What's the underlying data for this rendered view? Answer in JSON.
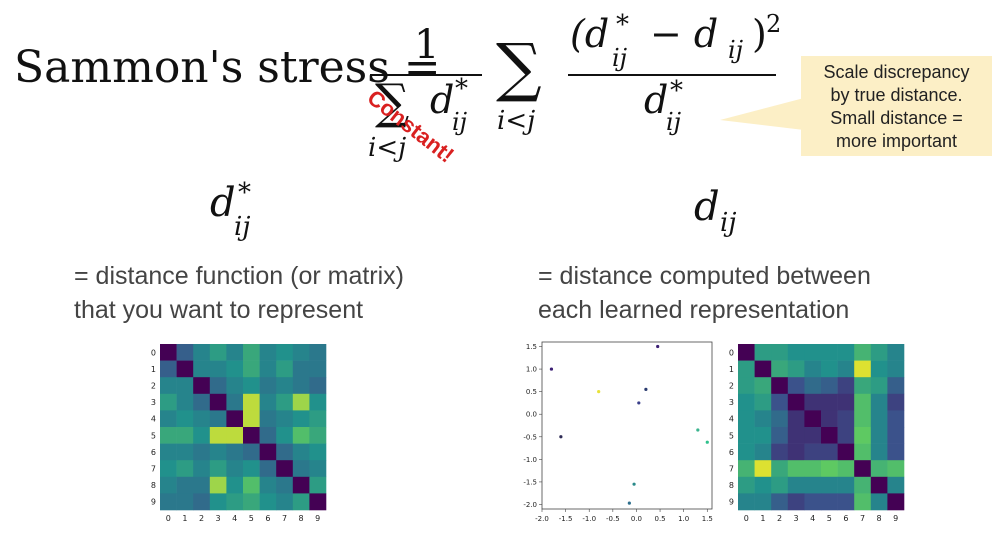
{
  "formula": {
    "lhs": "Sammon's stress =",
    "frac_num": "1",
    "outer_sigma": "∑",
    "sum_sub": "i<j",
    "d_star": "d",
    "star": "*",
    "sub_ij": "ij",
    "term_num_open": "(d",
    "term_minus": "− d",
    "term_close": ")",
    "power": "2",
    "constant_note": "Constant!"
  },
  "callout": {
    "line1": "Scale discrepancy",
    "line2": "by true distance.",
    "line3": "Small distance =",
    "line4": "more important"
  },
  "left": {
    "symbol_base": "d",
    "symbol_sup": "*",
    "symbol_sub": "ij",
    "line1": "= distance function (or matrix)",
    "line2": "that you want to represent",
    "heatmap_ticks": [
      "0",
      "1",
      "2",
      "3",
      "4",
      "5",
      "6",
      "7",
      "8",
      "9"
    ]
  },
  "right": {
    "symbol_base": "d",
    "symbol_sub": "ij",
    "line1": "= distance computed between",
    "line2": "each learned representation",
    "heatmap_ticks": [
      "0",
      "1",
      "2",
      "3",
      "4",
      "5",
      "6",
      "7",
      "8",
      "9"
    ]
  },
  "colors": {
    "callout_bg": "#fcefc6",
    "constant": "#d92020",
    "text": "#444444"
  },
  "chart_data": [
    {
      "type": "heatmap",
      "xticks": [
        "0",
        "1",
        "2",
        "3",
        "4",
        "5",
        "6",
        "7",
        "8",
        "9"
      ],
      "yticks": [
        "0",
        "1",
        "2",
        "3",
        "4",
        "5",
        "6",
        "7",
        "8",
        "9"
      ],
      "values": [
        [
          0.0,
          0.3,
          0.45,
          0.55,
          0.45,
          0.6,
          0.45,
          0.5,
          0.45,
          0.4
        ],
        [
          0.3,
          0.0,
          0.45,
          0.45,
          0.5,
          0.6,
          0.45,
          0.55,
          0.4,
          0.4
        ],
        [
          0.45,
          0.45,
          0.0,
          0.35,
          0.45,
          0.5,
          0.4,
          0.45,
          0.4,
          0.35
        ],
        [
          0.55,
          0.45,
          0.35,
          0.0,
          0.4,
          0.9,
          0.45,
          0.55,
          0.85,
          0.5
        ],
        [
          0.45,
          0.5,
          0.45,
          0.4,
          0.0,
          0.9,
          0.4,
          0.45,
          0.5,
          0.55
        ],
        [
          0.6,
          0.6,
          0.5,
          0.9,
          0.9,
          0.0,
          0.35,
          0.5,
          0.7,
          0.6
        ],
        [
          0.45,
          0.45,
          0.4,
          0.45,
          0.4,
          0.35,
          0.0,
          0.35,
          0.45,
          0.5
        ],
        [
          0.5,
          0.55,
          0.45,
          0.55,
          0.45,
          0.5,
          0.35,
          0.0,
          0.4,
          0.45
        ],
        [
          0.45,
          0.4,
          0.4,
          0.85,
          0.5,
          0.7,
          0.45,
          0.4,
          0.0,
          0.55
        ],
        [
          0.4,
          0.4,
          0.35,
          0.5,
          0.55,
          0.6,
          0.5,
          0.45,
          0.55,
          0.0
        ]
      ]
    },
    {
      "type": "scatter",
      "xlim": [
        -2.0,
        1.6
      ],
      "ylim": [
        -2.1,
        1.6
      ],
      "xticks": [
        "-2.0",
        "-1.5",
        "-1.0",
        "-0.5",
        "0.0",
        "0.5",
        "1.0",
        "1.5"
      ],
      "yticks": [
        "1.5",
        "1.0",
        "0.5",
        "0.0",
        "-0.5",
        "-1.0",
        "-1.5",
        "-2.0"
      ],
      "x": [
        0.45,
        -1.8,
        -0.8,
        0.2,
        0.05,
        -1.6,
        1.3,
        1.5,
        -0.05,
        -0.15
      ],
      "y": [
        1.5,
        1.0,
        0.5,
        0.55,
        0.25,
        -0.5,
        -0.35,
        -0.62,
        -1.55,
        -1.97
      ],
      "colors": [
        "#3b1f74",
        "#3b1f74",
        "#e8e23a",
        "#2a3b6f",
        "#3a3f8a",
        "#2e2b55",
        "#3cb48f",
        "#2fc18c",
        "#2a8a8a",
        "#2f6f8d"
      ]
    },
    {
      "type": "heatmap",
      "xticks": [
        "0",
        "1",
        "2",
        "3",
        "4",
        "5",
        "6",
        "7",
        "8",
        "9"
      ],
      "yticks": [
        "0",
        "1",
        "2",
        "3",
        "4",
        "5",
        "6",
        "7",
        "8",
        "9"
      ],
      "values": [
        [
          0.0,
          0.55,
          0.55,
          0.5,
          0.5,
          0.5,
          0.5,
          0.65,
          0.55,
          0.45
        ],
        [
          0.55,
          0.0,
          0.6,
          0.55,
          0.45,
          0.5,
          0.45,
          0.95,
          0.5,
          0.45
        ],
        [
          0.55,
          0.6,
          0.0,
          0.25,
          0.35,
          0.3,
          0.2,
          0.6,
          0.55,
          0.3
        ],
        [
          0.5,
          0.55,
          0.25,
          0.0,
          0.15,
          0.15,
          0.15,
          0.7,
          0.45,
          0.2
        ],
        [
          0.5,
          0.45,
          0.35,
          0.15,
          0.0,
          0.15,
          0.2,
          0.7,
          0.45,
          0.25
        ],
        [
          0.5,
          0.5,
          0.3,
          0.15,
          0.15,
          0.0,
          0.2,
          0.75,
          0.45,
          0.25
        ],
        [
          0.5,
          0.45,
          0.2,
          0.15,
          0.2,
          0.2,
          0.0,
          0.7,
          0.45,
          0.25
        ],
        [
          0.65,
          0.95,
          0.6,
          0.7,
          0.7,
          0.75,
          0.7,
          0.0,
          0.65,
          0.7
        ],
        [
          0.55,
          0.5,
          0.55,
          0.45,
          0.45,
          0.45,
          0.45,
          0.65,
          0.0,
          0.45
        ],
        [
          0.45,
          0.45,
          0.3,
          0.2,
          0.25,
          0.25,
          0.25,
          0.7,
          0.45,
          0.0
        ]
      ]
    }
  ]
}
